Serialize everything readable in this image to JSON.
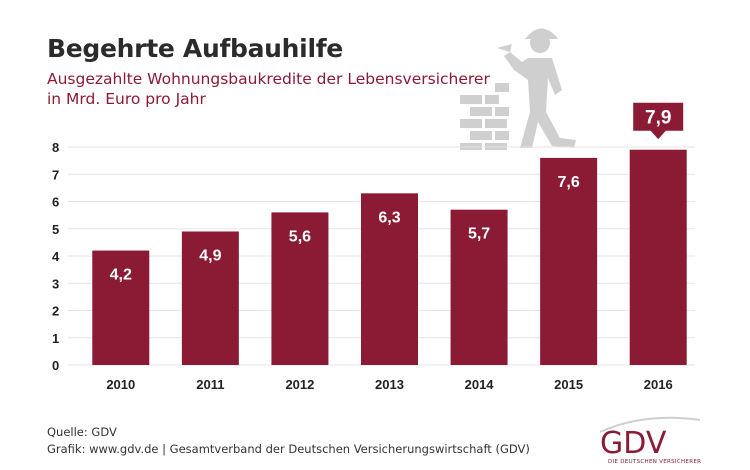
{
  "title": "Begehrte Aufbauhilfe",
  "subtitle_line1": "Ausgezahlte Wohnungsbaukredite der Lebensversicherer",
  "subtitle_line2": "in Mrd. Euro pro Jahr",
  "footer": {
    "source": "Quelle: GDV",
    "graphic": "Grafik: www.gdv.de | Gesamtverband der Deutschen Versicherungswirtschaft (GDV)"
  },
  "logo": {
    "text": "GDV",
    "tagline": "DIE DEUTSCHEN VERSICHERER"
  },
  "colors": {
    "bar": "#8b1a35",
    "grid": "#e6e6e6",
    "axis_text": "#222222",
    "label_text": "#ffffff",
    "illustration": "#d0d0d0"
  },
  "icon": "bricklayer-illustration-icon",
  "chart_data": {
    "type": "bar",
    "categories": [
      "2010",
      "2011",
      "2012",
      "2013",
      "2014",
      "2015",
      "2016"
    ],
    "values": [
      4.2,
      4.9,
      5.6,
      6.3,
      5.7,
      7.6,
      7.9
    ],
    "value_labels": [
      "4,2",
      "4,9",
      "5,6",
      "6,3",
      "5,7",
      "7,6",
      "7,9"
    ],
    "yticks": [
      "0",
      "1",
      "2",
      "3",
      "4",
      "5",
      "6",
      "7",
      "8"
    ],
    "ylim": [
      0,
      8
    ],
    "grid": true,
    "highlight_last": true
  }
}
